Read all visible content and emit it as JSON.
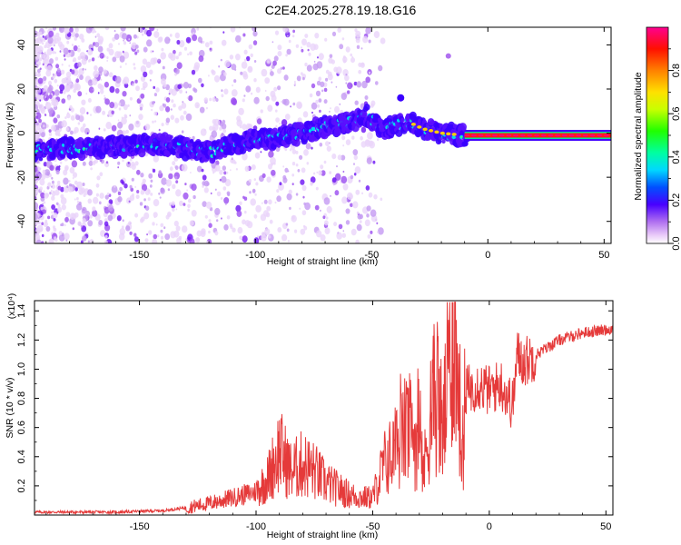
{
  "title": "C2E4.2025.278.19.18.G16",
  "chart_data": [
    {
      "type": "heatmap",
      "xlabel": "Height of straight line (km)",
      "ylabel": "Frequency (Hz)",
      "xlim": [
        -195,
        53
      ],
      "ylim": [
        -50,
        48
      ],
      "xticks": [
        -150,
        -100,
        -50,
        0,
        50
      ],
      "yticks": [
        -40,
        -20,
        0,
        20,
        40
      ],
      "colorbar": {
        "label": "Normalized spectral amplitude",
        "range": [
          0,
          1
        ],
        "ticks": [
          0.0,
          0.2,
          0.4,
          0.6,
          0.8
        ],
        "tick_labels": [
          "0.0",
          "0.2",
          "0.4",
          "0.6",
          "0.8"
        ]
      },
      "ridge": {
        "description": "frequency of peak amplitude vs height",
        "points": [
          [
            -195,
            -8
          ],
          [
            -180,
            -7
          ],
          [
            -160,
            -6
          ],
          [
            -140,
            -5
          ],
          [
            -120,
            -9
          ],
          [
            -110,
            -5
          ],
          [
            -100,
            -3
          ],
          [
            -90,
            -2
          ],
          [
            -80,
            0
          ],
          [
            -70,
            3
          ],
          [
            -60,
            5
          ],
          [
            -52,
            8
          ],
          [
            -45,
            2
          ],
          [
            -38,
            4
          ],
          [
            -32,
            4
          ],
          [
            -28,
            2
          ],
          [
            -20,
            0
          ],
          [
            -10,
            -1
          ],
          [
            0,
            -1
          ],
          [
            20,
            -1
          ],
          [
            53,
            -1
          ]
        ]
      }
    },
    {
      "type": "line",
      "xlabel": "Height of straight line (km)",
      "ylabel": "SNR (10 * v/v)",
      "y_multiplier": "(x10⁴)",
      "xlim": [
        -195,
        53
      ],
      "ylim": [
        0,
        1.47
      ],
      "xticks": [
        -150,
        -100,
        -50,
        0,
        50
      ],
      "yticks": [
        0.2,
        0.4,
        0.6,
        0.8,
        1.0,
        1.2,
        1.4
      ],
      "ytick_labels": [
        "0.2",
        "0.4",
        "0.6",
        "0.8",
        "1.0",
        "1.2",
        "1.4"
      ],
      "series_color": "#e53a3a",
      "x": [
        -195,
        -180,
        -160,
        -140,
        -130,
        -120,
        -110,
        -100,
        -95,
        -90,
        -85,
        -80,
        -75,
        -70,
        -65,
        -60,
        -55,
        -50,
        -45,
        -40,
        -35,
        -30,
        -28,
        -25,
        -22,
        -20,
        -18,
        -16,
        -15,
        -14,
        -13,
        -12,
        -10,
        -5,
        0,
        5,
        10,
        12,
        15,
        20,
        25,
        30,
        40,
        50,
        53
      ],
      "values": [
        0.02,
        0.02,
        0.02,
        0.03,
        0.05,
        0.08,
        0.12,
        0.16,
        0.25,
        0.45,
        0.3,
        0.35,
        0.3,
        0.22,
        0.18,
        0.14,
        0.12,
        0.12,
        0.35,
        0.45,
        0.6,
        0.5,
        0.3,
        0.75,
        0.85,
        0.55,
        0.9,
        1.3,
        1.45,
        0.9,
        1.0,
        0.35,
        0.85,
        0.9,
        0.85,
        0.9,
        0.75,
        1.1,
        1.05,
        1.1,
        1.15,
        1.2,
        1.25,
        1.27,
        1.28
      ]
    }
  ]
}
